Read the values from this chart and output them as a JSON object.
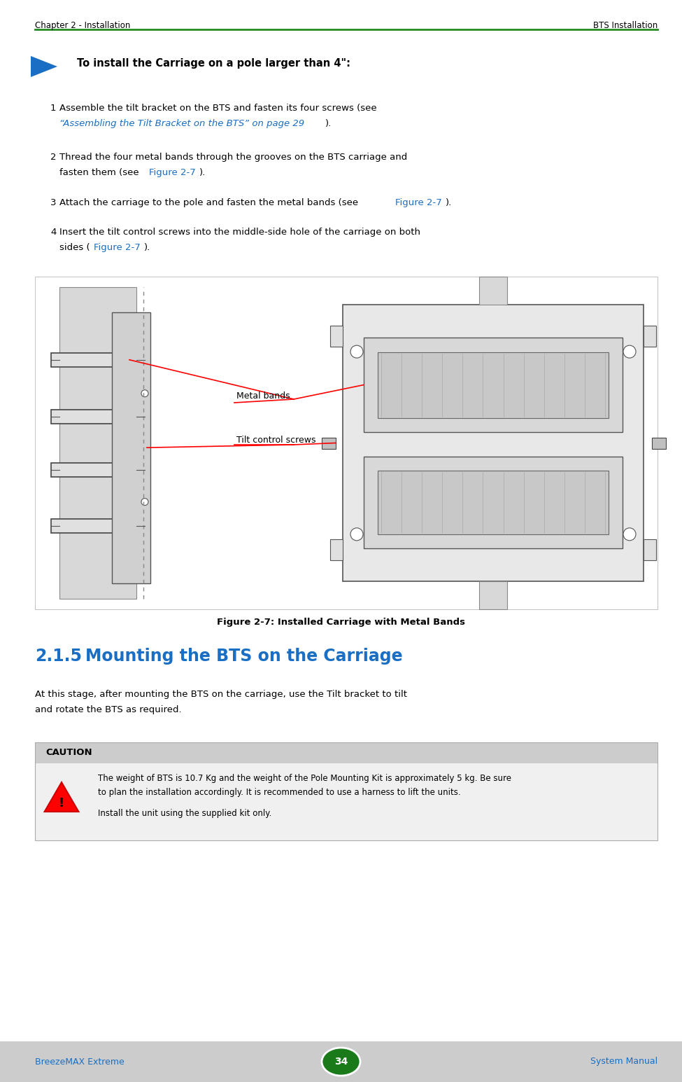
{
  "page_width": 9.75,
  "page_height": 15.45,
  "dpi": 100,
  "bg_color": "#ffffff",
  "header_text_left": "Chapter 2 - Installation",
  "header_text_right": "BTS Installation",
  "header_line_color": "#228B22",
  "header_font_size": 8.5,
  "footer_bg_color": "#cccccc",
  "footer_text_left": "BreezeMAX Extreme",
  "footer_text_right": "System Manual",
  "footer_page_num": "34",
  "footer_font_size": 9,
  "arrow_color": "#1a6fc4",
  "section_heading": "To install the Carriage on a pole larger than 4\":",
  "section_heading_font_size": 10.5,
  "body_font_size": 9.5,
  "link_color": "#1a6fc4",
  "figure_caption": "Figure 2-7: Installed Carriage with Metal Bands",
  "label_metal_bands": "Metal bands",
  "label_tilt_screws": "Tilt control screws",
  "section_title": "2.1.5",
  "section_title_rest": "   Mounting the BTS on the Carriage",
  "section_title_color": "#1a6fc4",
  "section_title_font_size": 17,
  "caution_label": "CAUTION",
  "caution_bg": "#cccccc",
  "caution_text1a": "The weight of BTS is 10.7 Kg and the weight of the Pole Mounting Kit is approximately 5 kg. Be sure",
  "caution_text1b": "to plan the installation accordingly. It is recommended to use a harness to lift the units.",
  "caution_text2": "Install the unit using the supplied kit only.",
  "body_line1": "At this stage, after mounting the BTS on the carriage, use the Tilt bracket to tilt",
  "body_line2": "and rotate the BTS as required."
}
